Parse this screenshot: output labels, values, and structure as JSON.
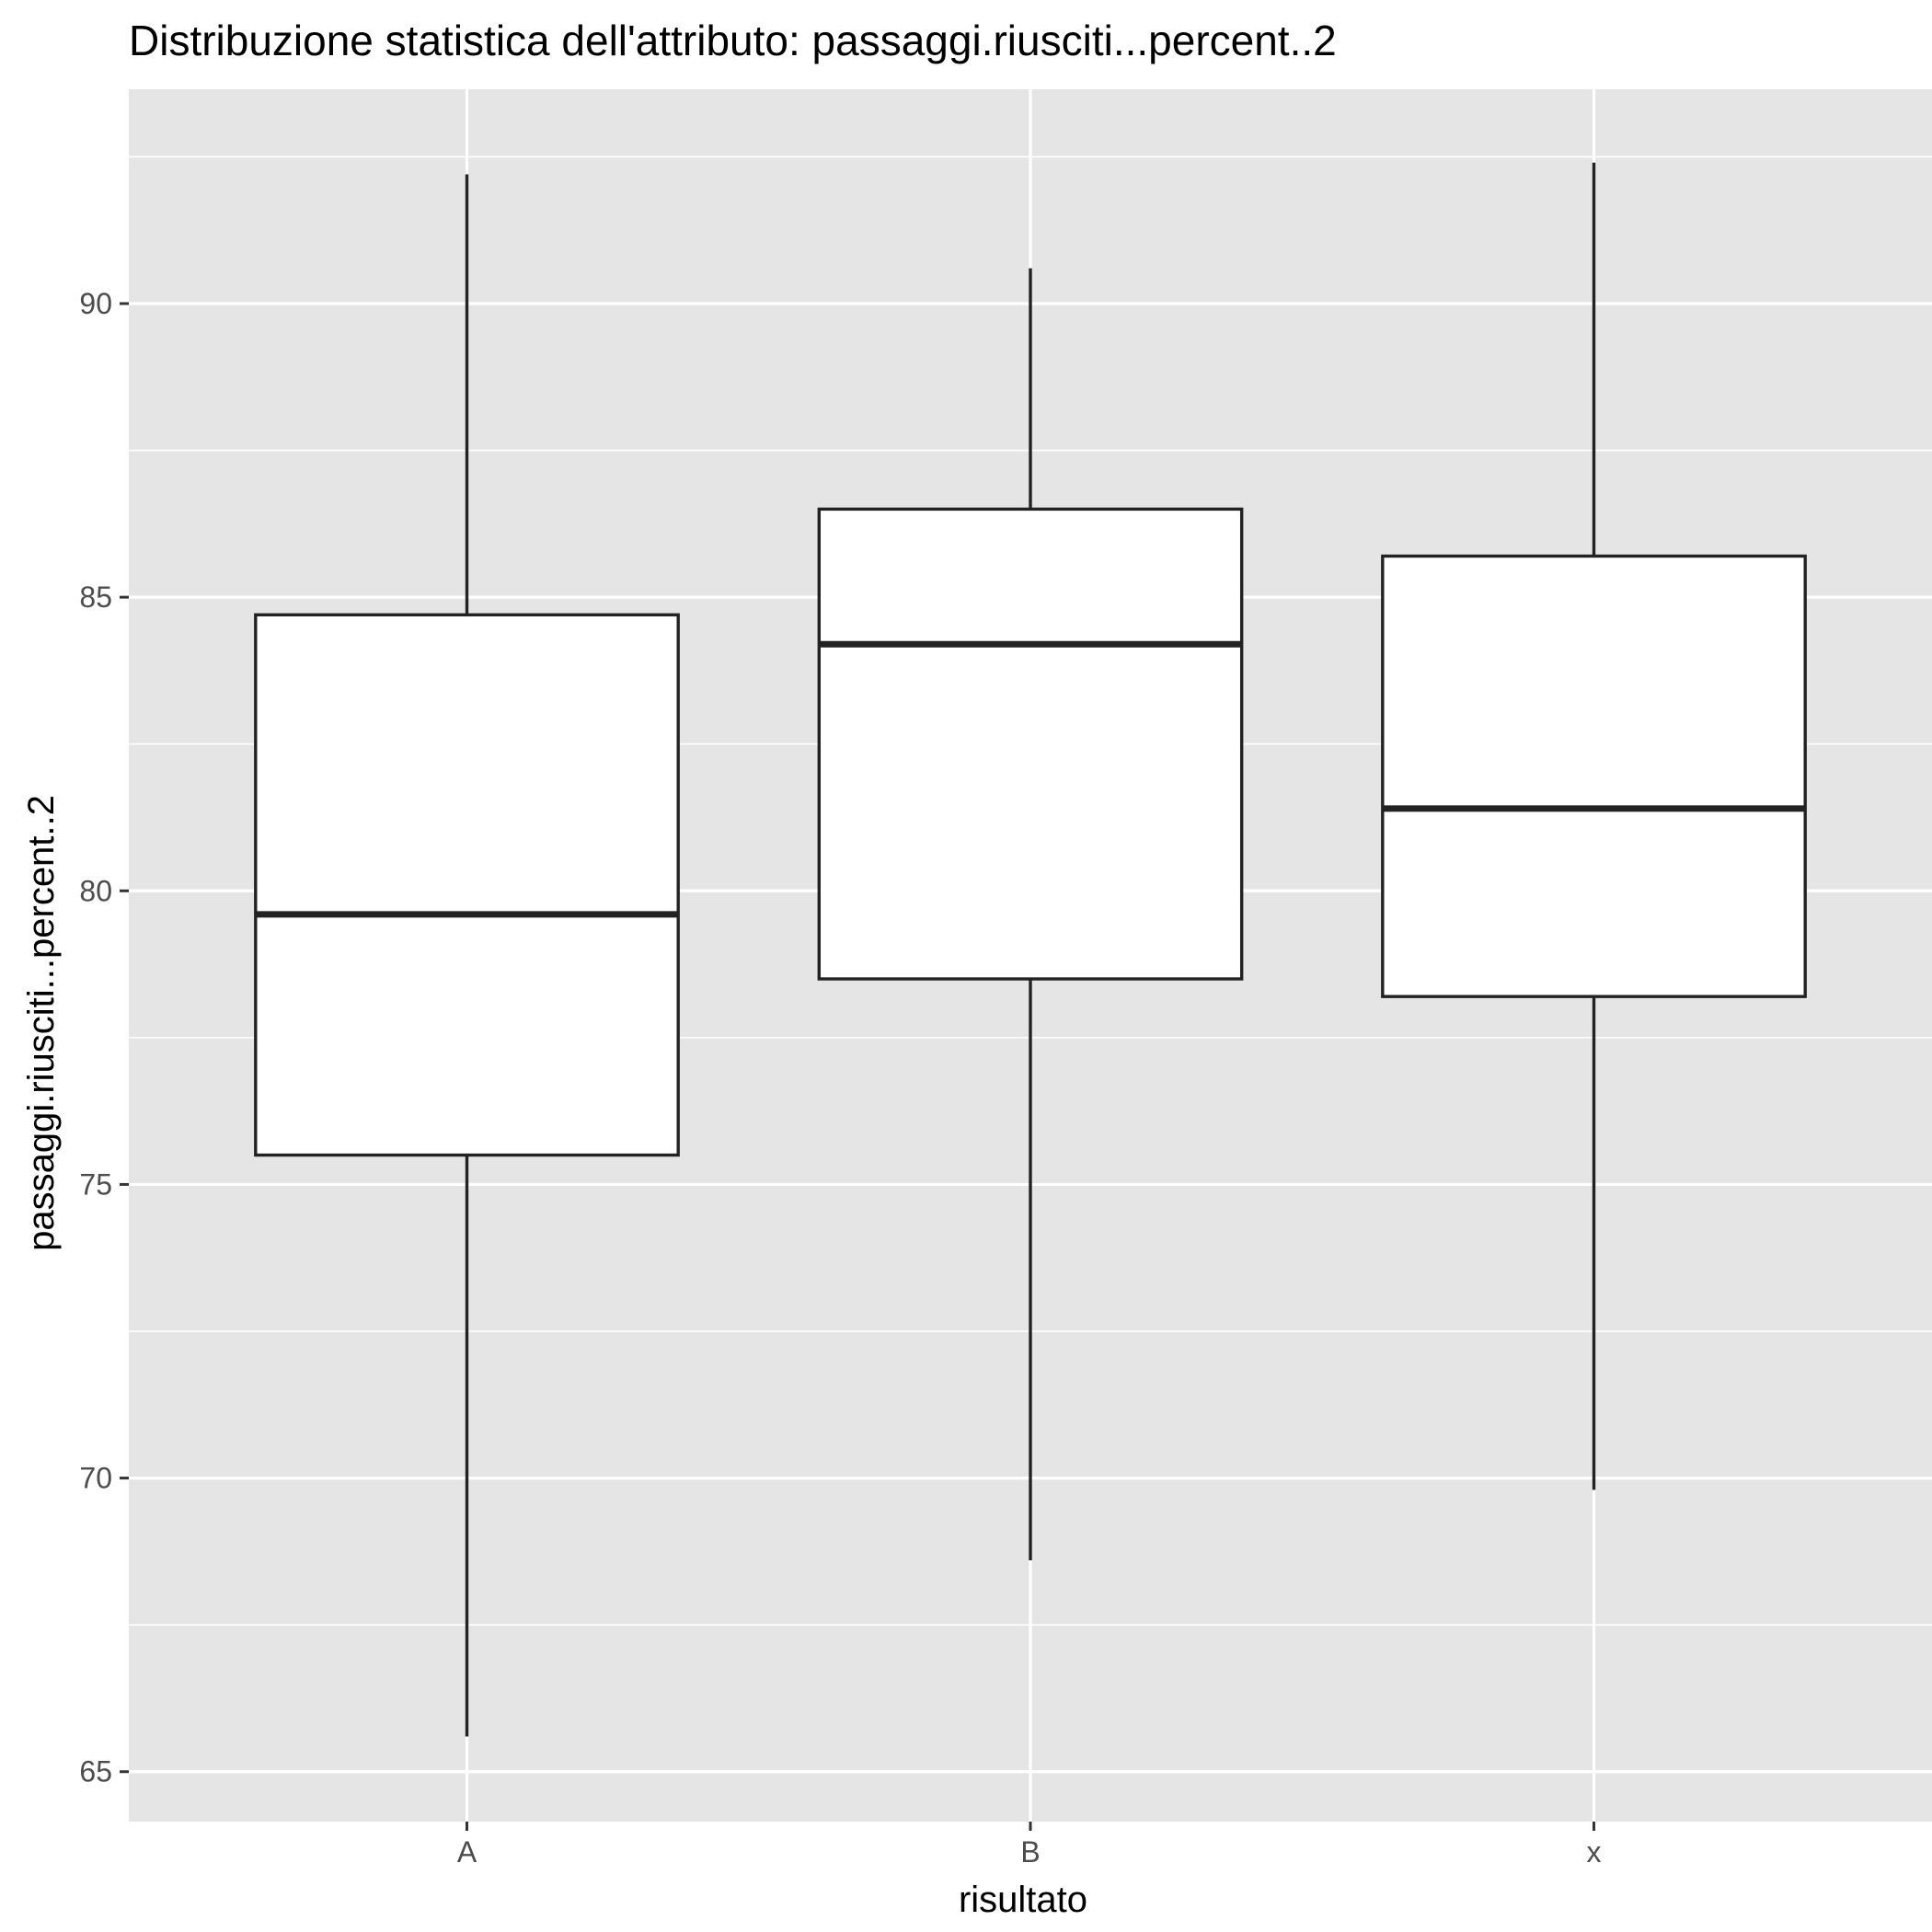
{
  "chart_data": {
    "type": "boxplot",
    "title": "Distribuzione statistica dell'attributo: passaggi.riusciti...percent..2",
    "xlabel": "risultato",
    "ylabel": "passaggi.riusciti...percent..2",
    "categories": [
      "A",
      "B",
      "x"
    ],
    "boxes": [
      {
        "category": "A",
        "whisker_low": 65.6,
        "q1": 75.5,
        "median": 79.6,
        "q3": 84.7,
        "whisker_high": 92.2
      },
      {
        "category": "B",
        "whisker_low": 68.6,
        "q1": 78.5,
        "median": 84.2,
        "q3": 86.5,
        "whisker_high": 90.6
      },
      {
        "category": "x",
        "whisker_low": 69.8,
        "q1": 78.2,
        "median": 81.4,
        "q3": 85.7,
        "whisker_high": 92.4
      }
    ],
    "y_ticks": [
      65,
      70,
      75,
      80,
      85,
      90
    ],
    "y_tick_labels": [
      "65",
      "70",
      "75",
      "80",
      "85",
      "90"
    ],
    "ylim": [
      64.15,
      93.65
    ],
    "grid": true,
    "colors": {
      "panel_background": "#e5e5e5",
      "grid": "#ffffff",
      "box_fill": "#ffffff",
      "box_stroke": "#222222",
      "tick_label": "#4d4d4d",
      "tick_mark": "#333333"
    }
  }
}
